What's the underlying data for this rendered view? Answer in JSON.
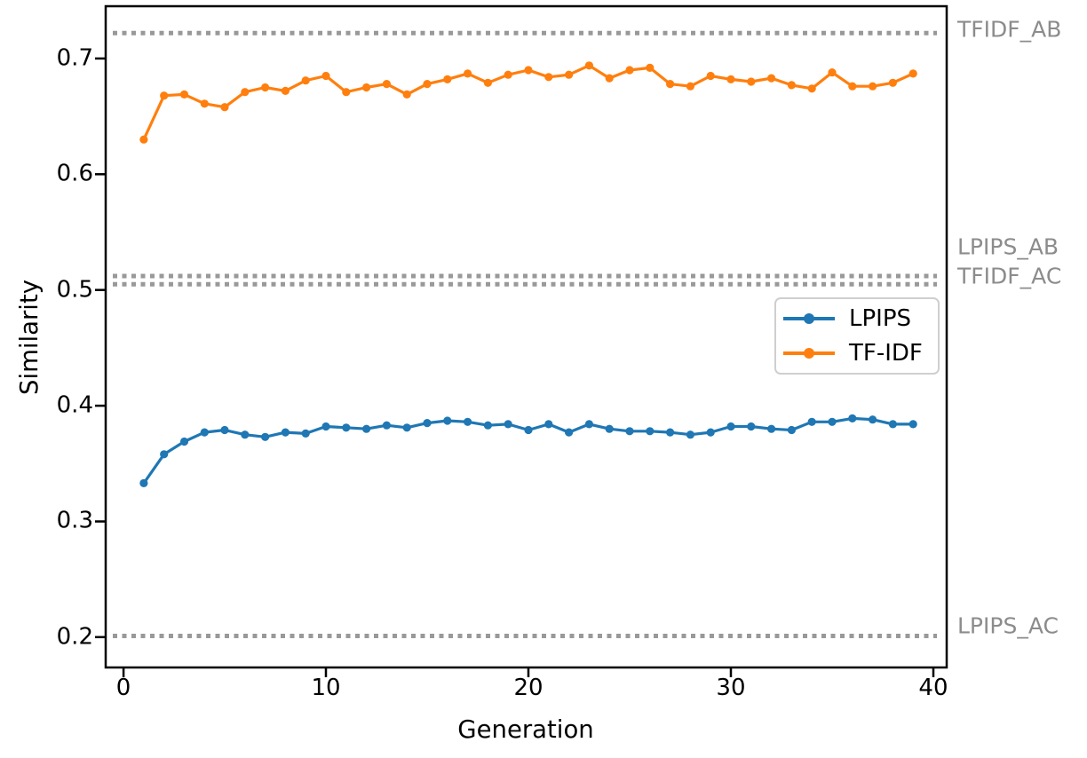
{
  "chart_data": {
    "type": "line",
    "title": "",
    "xlabel": "Generation",
    "ylabel": "Similarity",
    "xlim": [
      -0.88,
      40.66
    ],
    "ylim": [
      0.1738,
      0.7452
    ],
    "grid": false,
    "legend_position": "center-right inside axes",
    "xticks": [
      {
        "v": 0,
        "label": "0"
      },
      {
        "v": 10,
        "label": "10"
      },
      {
        "v": 20,
        "label": "20"
      },
      {
        "v": 30,
        "label": "30"
      },
      {
        "v": 40,
        "label": "40"
      }
    ],
    "yticks": [
      {
        "v": 0.2,
        "label": "0.2"
      },
      {
        "v": 0.3,
        "label": "0.3"
      },
      {
        "v": 0.4,
        "label": "0.4"
      },
      {
        "v": 0.5,
        "label": "0.5"
      },
      {
        "v": 0.6,
        "label": "0.6"
      },
      {
        "v": 0.7,
        "label": "0.7"
      }
    ],
    "x": [
      1,
      2,
      3,
      4,
      5,
      6,
      7,
      8,
      9,
      10,
      11,
      12,
      13,
      14,
      15,
      16,
      17,
      18,
      19,
      20,
      21,
      22,
      23,
      24,
      25,
      26,
      27,
      28,
      29,
      30,
      31,
      32,
      33,
      34,
      35,
      36,
      37,
      38,
      39
    ],
    "series": [
      {
        "name": "LPIPS",
        "color": "#1f77b4",
        "marker": "circle",
        "values": [
          0.333,
          0.358,
          0.369,
          0.377,
          0.379,
          0.375,
          0.373,
          0.377,
          0.376,
          0.382,
          0.381,
          0.38,
          0.383,
          0.381,
          0.385,
          0.387,
          0.386,
          0.383,
          0.384,
          0.379,
          0.384,
          0.377,
          0.384,
          0.38,
          0.378,
          0.378,
          0.377,
          0.375,
          0.377,
          0.382,
          0.382,
          0.38,
          0.379,
          0.386,
          0.386,
          0.389,
          0.388,
          0.384,
          0.384
        ]
      },
      {
        "name": "TF-IDF",
        "color": "#ff7f0e",
        "marker": "circle",
        "values": [
          0.63,
          0.668,
          0.669,
          0.661,
          0.658,
          0.671,
          0.675,
          0.672,
          0.681,
          0.685,
          0.671,
          0.675,
          0.678,
          0.669,
          0.678,
          0.682,
          0.687,
          0.679,
          0.686,
          0.69,
          0.684,
          0.686,
          0.694,
          0.683,
          0.69,
          0.692,
          0.678,
          0.676,
          0.685,
          0.682,
          0.68,
          0.683,
          0.677,
          0.674,
          0.688,
          0.676,
          0.676,
          0.679,
          0.687
        ]
      }
    ],
    "reference_lines": [
      {
        "label": "TFIDF_AB",
        "value": 0.722,
        "color": "#999999",
        "style": "dotted"
      },
      {
        "label": "LPIPS_AB",
        "value": 0.512,
        "color": "#999999",
        "style": "dotted"
      },
      {
        "label": "TFIDF_AC",
        "value": 0.505,
        "color": "#999999",
        "style": "dotted"
      },
      {
        "label": "LPIPS_AC",
        "value": 0.201,
        "color": "#999999",
        "style": "dotted"
      }
    ],
    "ref_label_color": "#8c8c8c",
    "spine_color": "#000000"
  }
}
